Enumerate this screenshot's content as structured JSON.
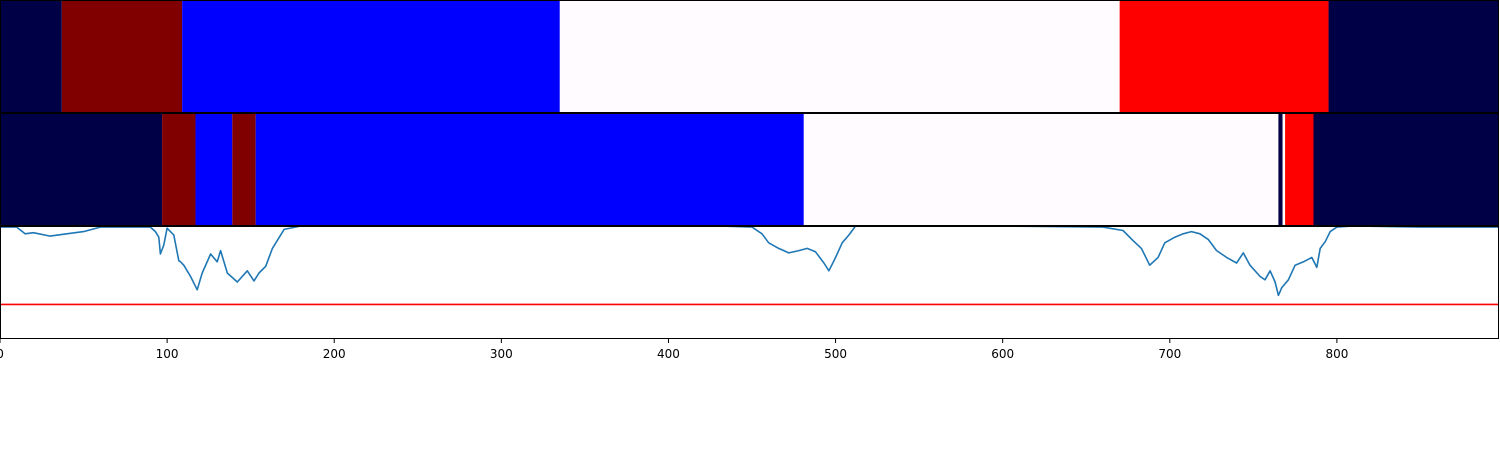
{
  "chart_data": [
    {
      "type": "heatmap",
      "xlim": [
        0,
        897
      ],
      "colors": {
        "navy": "#000047",
        "maroon": "#800000",
        "blue": "#0000ff",
        "white": "#fffbfe",
        "red": "#ff0000"
      },
      "segments": [
        {
          "start": 0,
          "end": 37,
          "color": "navy"
        },
        {
          "start": 37,
          "end": 109,
          "color": "maroon"
        },
        {
          "start": 109,
          "end": 335,
          "color": "blue"
        },
        {
          "start": 335,
          "end": 670,
          "color": "white"
        },
        {
          "start": 670,
          "end": 795,
          "color": "red"
        },
        {
          "start": 795,
          "end": 897,
          "color": "navy"
        }
      ]
    },
    {
      "type": "heatmap",
      "xlim": [
        0,
        897
      ],
      "segments": [
        {
          "start": 0,
          "end": 97,
          "color": "navy"
        },
        {
          "start": 97,
          "end": 117,
          "color": "maroon"
        },
        {
          "start": 117,
          "end": 139,
          "color": "blue"
        },
        {
          "start": 139,
          "end": 153,
          "color": "maroon"
        },
        {
          "start": 153,
          "end": 481,
          "color": "blue"
        },
        {
          "start": 481,
          "end": 765,
          "color": "white"
        },
        {
          "start": 765,
          "end": 767.5,
          "color": "navy"
        },
        {
          "start": 767.5,
          "end": 769,
          "color": "white"
        },
        {
          "start": 769,
          "end": 786,
          "color": "red"
        },
        {
          "start": 786,
          "end": 897,
          "color": "navy"
        }
      ]
    },
    {
      "type": "line",
      "xlim": [
        0,
        897
      ],
      "ylim": [
        0,
        1
      ],
      "line_color": "#1f77b4",
      "threshold": 0.3,
      "threshold_color": "#ff0000",
      "x": [
        0,
        10,
        15,
        20,
        30,
        40,
        50,
        60,
        70,
        80,
        90,
        93,
        95,
        96,
        98,
        100,
        104,
        107,
        108,
        110,
        114,
        118,
        121,
        126,
        130,
        132,
        136,
        142,
        148,
        152,
        155,
        159,
        163,
        170,
        180,
        200,
        300,
        400,
        430,
        450,
        456,
        460,
        466,
        472,
        478,
        483,
        488,
        493,
        496,
        500,
        504,
        508,
        512,
        520,
        600,
        660,
        672,
        678,
        683,
        688,
        693,
        697,
        703,
        708,
        713,
        718,
        723,
        728,
        734,
        740,
        744,
        748,
        754,
        757,
        760,
        763,
        765,
        767,
        771,
        775,
        780,
        785,
        788,
        790,
        793,
        796,
        800,
        810,
        850,
        897
      ],
      "values": [
        0.99,
        0.99,
        0.93,
        0.94,
        0.91,
        0.93,
        0.95,
        0.99,
        0.99,
        0.99,
        0.99,
        0.95,
        0.9,
        0.75,
        0.83,
        0.98,
        0.92,
        0.69,
        0.68,
        0.65,
        0.55,
        0.43,
        0.58,
        0.75,
        0.68,
        0.78,
        0.58,
        0.5,
        0.6,
        0.51,
        0.58,
        0.64,
        0.8,
        0.97,
        1.0,
        1.0,
        1.0,
        1.0,
        1.0,
        0.99,
        0.93,
        0.85,
        0.8,
        0.76,
        0.78,
        0.8,
        0.77,
        0.67,
        0.6,
        0.72,
        0.85,
        0.92,
        1.0,
        1.0,
        1.0,
        0.99,
        0.96,
        0.87,
        0.8,
        0.65,
        0.72,
        0.85,
        0.9,
        0.93,
        0.95,
        0.93,
        0.88,
        0.78,
        0.72,
        0.67,
        0.76,
        0.65,
        0.55,
        0.52,
        0.6,
        0.5,
        0.38,
        0.45,
        0.52,
        0.65,
        0.68,
        0.72,
        0.63,
        0.8,
        0.86,
        0.95,
        0.99,
        1.0,
        0.99,
        0.99
      ]
    }
  ],
  "x_axis": {
    "ticks": [
      0,
      100,
      200,
      300,
      400,
      500,
      600,
      700,
      800
    ],
    "tick_labels": [
      "0",
      "100",
      "200",
      "300",
      "400",
      "500",
      "600",
      "700",
      "800"
    ]
  }
}
